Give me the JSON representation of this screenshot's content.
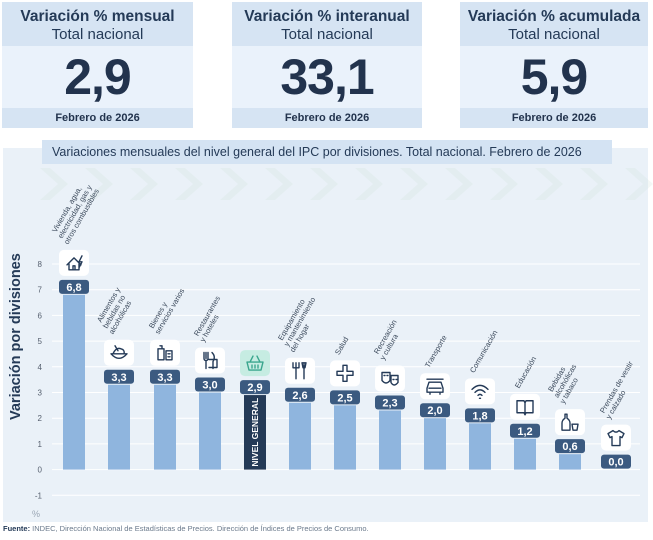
{
  "kpis": [
    {
      "title": "Variación % mensual",
      "subtitle": "Total nacional",
      "value": "2,9",
      "period": "Febrero de 2026"
    },
    {
      "title": "Variación % interanual",
      "subtitle": "Total nacional",
      "value": "33,1",
      "period": "Febrero de 2026"
    },
    {
      "title": "Variación % acumulada",
      "subtitle": "Total nacional",
      "value": "5,9",
      "period": "Febrero de 2026"
    }
  ],
  "chart_data": {
    "type": "bar",
    "title": "Variaciones mensuales del nivel general del IPC por divisiones. Total nacional. Febrero de 2026",
    "ylabel": "Variación por divisiones",
    "yunit": "%",
    "ylim": [
      -1,
      8
    ],
    "yticks": [
      "-1",
      "0",
      "1",
      "2",
      "3",
      "4",
      "5",
      "6",
      "7",
      "8"
    ],
    "grid": true,
    "categories": [
      "Vivienda, agua, electricidad, gas y otros combustibles",
      "Alimentos y bebidas no alcohólicas",
      "Bienes y servicios varios",
      "Restaurantes y hoteles",
      "NIVEL GENERAL",
      "Equipamiento y mantenimiento del hogar",
      "Salud",
      "Recreación y cultura",
      "Transporte",
      "Comunicación",
      "Educación",
      "Bebidas alcohólicas y tabaco",
      "Prendas de vestir y calzado"
    ],
    "category_lines": [
      [
        "Vivienda, agua,",
        "electricidad, gas y",
        "otros combustibles"
      ],
      [
        "Alimentos y",
        "bebidas no",
        "alcohólicas"
      ],
      [
        "Bienes y",
        "servicios varios"
      ],
      [
        "Restaurantes",
        "y hoteles"
      ],
      [],
      [
        "Equipamiento",
        "y mantenimiento",
        "del hogar"
      ],
      [
        "Salud"
      ],
      [
        "Recreación",
        "y cultura"
      ],
      [
        "Transporte"
      ],
      [
        "Comunicación"
      ],
      [
        "Educación"
      ],
      [
        "Bebidas",
        "alcohólicas",
        "y tabaco"
      ],
      [
        "Prendas de vestir",
        "y calzado"
      ]
    ],
    "values": [
      6.8,
      3.3,
      3.3,
      3.0,
      2.9,
      2.6,
      2.5,
      2.3,
      2.0,
      1.8,
      1.2,
      0.6,
      0.0
    ],
    "value_labels": [
      "6,8",
      "3,3",
      "3,3",
      "3,0",
      "2,9",
      "2,6",
      "2,5",
      "2,3",
      "2,0",
      "1,8",
      "1,2",
      "0,6",
      "0,0"
    ],
    "icons": [
      "house-bolt-icon",
      "food-bowl-icon",
      "basket-items-icon",
      "fork-knife-icon",
      "shopping-basket-icon",
      "tools-icon",
      "health-cross-icon",
      "theater-masks-icon",
      "car-icon",
      "wifi-icon",
      "book-icon",
      "bottle-glass-icon",
      "tshirt-icon"
    ],
    "highlight_index": 4,
    "highlight_label": "NIVEL GENERAL"
  },
  "colors": {
    "bar": "#8fb5de",
    "highlight": "#243a57",
    "label_bg": "#3b5a80",
    "accent_icon": "#3aa68e"
  },
  "source": {
    "label": "Fuente:",
    "text": " INDEC, Dirección Nacional de Estadísticas de Precios. Dirección de Índices de Precios de Consumo."
  }
}
